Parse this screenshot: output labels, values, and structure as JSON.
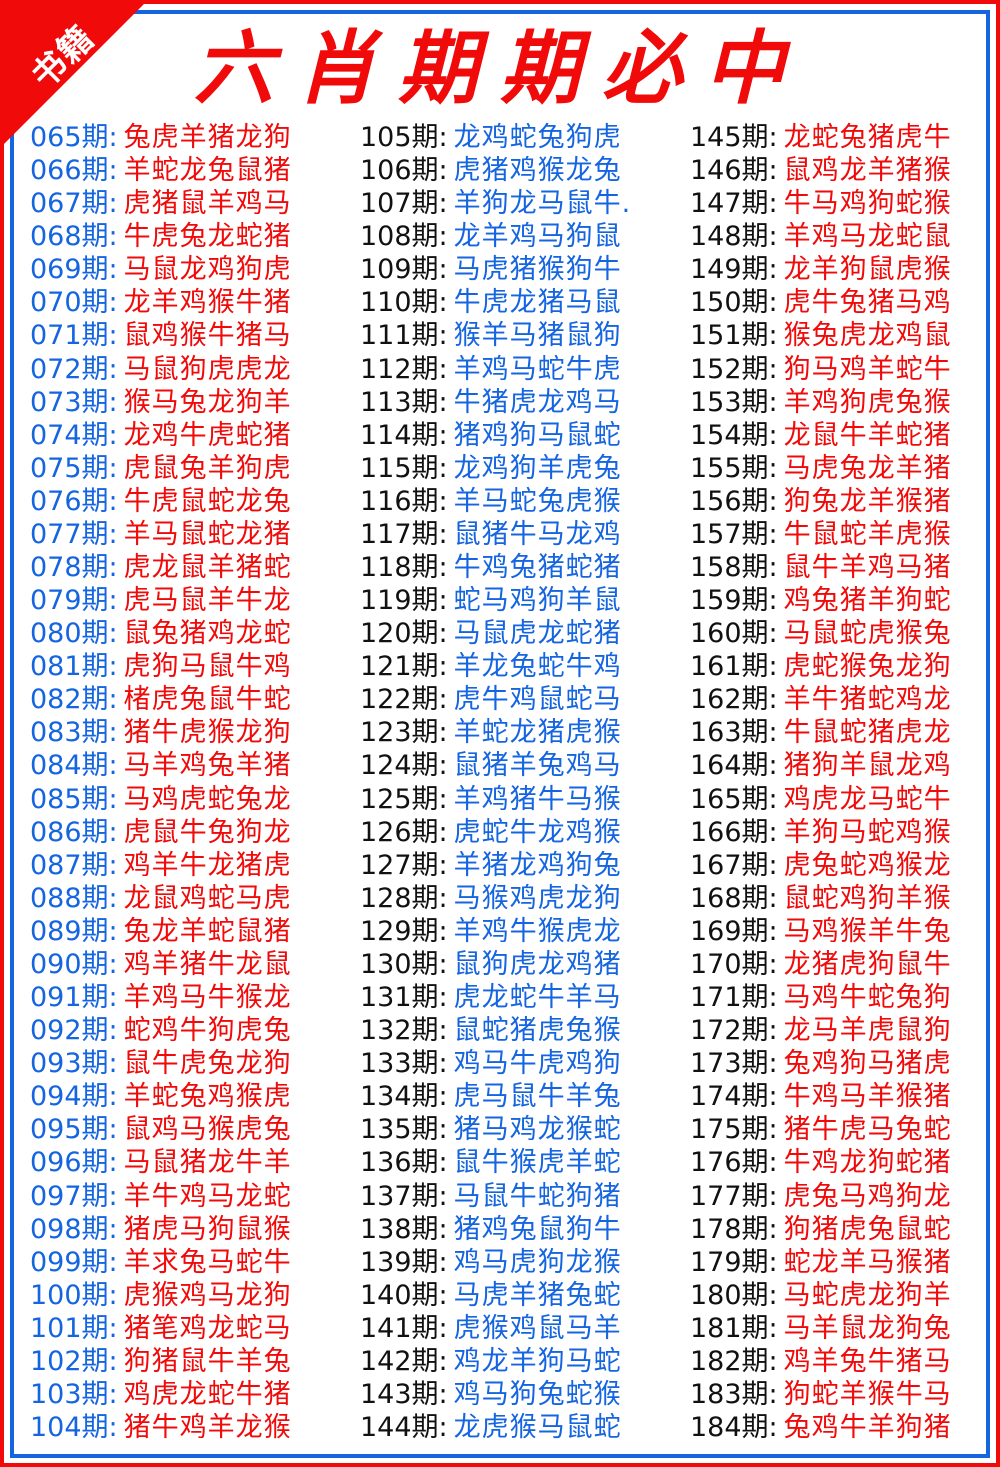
{
  "corner_badge": "书籍",
  "title": "六肖期期必中",
  "colors": {
    "red": "#f00a0a",
    "blue": "#1565e0",
    "black": "#111111"
  },
  "columns": [
    [
      [
        "065期:",
        "兔虎羊猪龙狗"
      ],
      [
        "066期:",
        "羊蛇龙兔鼠猪"
      ],
      [
        "067期:",
        "虎猪鼠羊鸡马"
      ],
      [
        "068期:",
        "牛虎兔龙蛇猪"
      ],
      [
        "069期:",
        "马鼠龙鸡狗虎"
      ],
      [
        "070期:",
        "龙羊鸡猴牛猪"
      ],
      [
        "071期:",
        "鼠鸡猴牛猪马"
      ],
      [
        "072期:",
        "马鼠狗虎虎龙"
      ],
      [
        "073期:",
        "猴马兔龙狗羊"
      ],
      [
        "074期:",
        "龙鸡牛虎蛇猪"
      ],
      [
        "075期:",
        "虎鼠兔羊狗虎"
      ],
      [
        "076期:",
        "牛虎鼠蛇龙兔"
      ],
      [
        "077期:",
        "羊马鼠蛇龙猪"
      ],
      [
        "078期:",
        "虎龙鼠羊猪蛇"
      ],
      [
        "079期:",
        "虎马鼠羊牛龙"
      ],
      [
        "080期:",
        "鼠兔猪鸡龙蛇"
      ],
      [
        "081期:",
        "虎狗马鼠牛鸡"
      ],
      [
        "082期:",
        "楮虎兔鼠牛蛇"
      ],
      [
        "083期:",
        "猪牛虎猴龙狗"
      ],
      [
        "084期:",
        "马羊鸡兔羊猪"
      ],
      [
        "085期:",
        "马鸡虎蛇兔龙"
      ],
      [
        "086期:",
        "虎鼠牛兔狗龙"
      ],
      [
        "087期:",
        "鸡羊牛龙猪虎"
      ],
      [
        "088期:",
        "龙鼠鸡蛇马虎"
      ],
      [
        "089期:",
        "兔龙羊蛇鼠猪"
      ],
      [
        "090期:",
        "鸡羊猪牛龙鼠"
      ],
      [
        "091期:",
        "羊鸡马牛猴龙"
      ],
      [
        "092期:",
        "蛇鸡牛狗虎兔"
      ],
      [
        "093期:",
        "鼠牛虎兔龙狗"
      ],
      [
        "094期:",
        "羊蛇兔鸡猴虎"
      ],
      [
        "095期:",
        "鼠鸡马猴虎兔"
      ],
      [
        "096期:",
        "马鼠猪龙牛羊"
      ],
      [
        "097期:",
        "羊牛鸡马龙蛇"
      ],
      [
        "098期:",
        "猪虎马狗鼠猴"
      ],
      [
        "099期:",
        "羊求兔马蛇牛"
      ],
      [
        "100期:",
        "虎猴鸡马龙狗"
      ],
      [
        "101期:",
        "猪笔鸡龙蛇马"
      ],
      [
        "102期:",
        "狗猪鼠牛羊兔"
      ],
      [
        "103期:",
        "鸡虎龙蛇牛猪"
      ],
      [
        "104期:",
        "猪牛鸡羊龙猴"
      ]
    ],
    [
      [
        "105期:",
        "龙鸡蛇兔狗虎"
      ],
      [
        "106期:",
        "虎猪鸡猴龙兔"
      ],
      [
        "107期:",
        "羊狗龙马鼠牛."
      ],
      [
        "108期:",
        "龙羊鸡马狗鼠"
      ],
      [
        "109期:",
        "马虎猪猴狗牛"
      ],
      [
        "110期:",
        "牛虎龙猪马鼠"
      ],
      [
        "111期:",
        "猴羊马猪鼠狗"
      ],
      [
        "112期:",
        "羊鸡马蛇牛虎"
      ],
      [
        "113期:",
        "牛猪虎龙鸡马"
      ],
      [
        "114期:",
        "猪鸡狗马鼠蛇"
      ],
      [
        "115期:",
        "龙鸡狗羊虎兔"
      ],
      [
        "116期:",
        "羊马蛇兔虎猴"
      ],
      [
        "117期:",
        "鼠猪牛马龙鸡"
      ],
      [
        "118期:",
        "牛鸡兔猪蛇猪"
      ],
      [
        "119期:",
        "蛇马鸡狗羊鼠"
      ],
      [
        "120期:",
        "马鼠虎龙蛇猪"
      ],
      [
        "121期:",
        "羊龙兔蛇牛鸡"
      ],
      [
        "122期:",
        "虎牛鸡鼠蛇马"
      ],
      [
        "123期:",
        "羊蛇龙猪虎猴"
      ],
      [
        "124期:",
        "鼠猪羊兔鸡马"
      ],
      [
        "125期:",
        "羊鸡猪牛马猴"
      ],
      [
        "126期:",
        "虎蛇牛龙鸡猴"
      ],
      [
        "127期:",
        "羊猪龙鸡狗兔"
      ],
      [
        "128期:",
        "马猴鸡虎龙狗"
      ],
      [
        "129期:",
        "羊鸡牛猴虎龙"
      ],
      [
        "130期:",
        "鼠狗虎龙鸡猪"
      ],
      [
        "131期:",
        "虎龙蛇牛羊马"
      ],
      [
        "132期:",
        "鼠蛇猪虎兔猴"
      ],
      [
        "133期:",
        "鸡马牛虎鸡狗"
      ],
      [
        "134期:",
        "虎马鼠牛羊兔"
      ],
      [
        "135期:",
        "猪马鸡龙猴蛇"
      ],
      [
        "136期:",
        "鼠牛猴虎羊蛇"
      ],
      [
        "137期:",
        "马鼠牛蛇狗猪"
      ],
      [
        "138期:",
        "猪鸡兔鼠狗牛"
      ],
      [
        "139期:",
        "鸡马虎狗龙猴"
      ],
      [
        "140期:",
        "马虎羊猪兔蛇"
      ],
      [
        "141期:",
        "虎猴鸡鼠马羊"
      ],
      [
        "142期:",
        "鸡龙羊狗马蛇"
      ],
      [
        "143期:",
        "鸡马狗兔蛇猴"
      ],
      [
        "144期:",
        "龙虎猴马鼠蛇"
      ]
    ],
    [
      [
        "145期:",
        "龙蛇兔猪虎牛"
      ],
      [
        "146期:",
        "鼠鸡龙羊猪猴"
      ],
      [
        "147期:",
        "牛马鸡狗蛇猴"
      ],
      [
        "148期:",
        "羊鸡马龙蛇鼠"
      ],
      [
        "149期:",
        "龙羊狗鼠虎猴"
      ],
      [
        "150期:",
        "虎牛兔猪马鸡"
      ],
      [
        "151期:",
        "猴兔虎龙鸡鼠"
      ],
      [
        "152期:",
        "狗马鸡羊蛇牛"
      ],
      [
        "153期:",
        "羊鸡狗虎兔猴"
      ],
      [
        "154期:",
        "龙鼠牛羊蛇猪"
      ],
      [
        "155期:",
        "马虎兔龙羊猪"
      ],
      [
        "156期:",
        "狗兔龙羊猴猪"
      ],
      [
        "157期:",
        "牛鼠蛇羊虎猴"
      ],
      [
        "158期:",
        "鼠牛羊鸡马猪"
      ],
      [
        "159期:",
        "鸡兔猪羊狗蛇"
      ],
      [
        "160期:",
        "马鼠蛇虎猴兔"
      ],
      [
        "161期:",
        "虎蛇猴兔龙狗"
      ],
      [
        "162期:",
        "羊牛猪蛇鸡龙"
      ],
      [
        "163期:",
        "牛鼠蛇猪虎龙"
      ],
      [
        "164期:",
        "猪狗羊鼠龙鸡"
      ],
      [
        "165期:",
        "鸡虎龙马蛇牛"
      ],
      [
        "166期:",
        "羊狗马蛇鸡猴"
      ],
      [
        "167期:",
        "虎兔蛇鸡猴龙"
      ],
      [
        "168期:",
        "鼠蛇鸡狗羊猴"
      ],
      [
        "169期:",
        "马鸡猴羊牛兔"
      ],
      [
        "170期:",
        "龙猪虎狗鼠牛"
      ],
      [
        "171期:",
        "马鸡牛蛇兔狗"
      ],
      [
        "172期:",
        "龙马羊虎鼠狗"
      ],
      [
        "173期:",
        "兔鸡狗马猪虎"
      ],
      [
        "174期:",
        "牛鸡马羊猴猪"
      ],
      [
        "175期:",
        "猪牛虎马兔蛇"
      ],
      [
        "176期:",
        "牛鸡龙狗蛇猪"
      ],
      [
        "177期:",
        "虎兔马鸡狗龙"
      ],
      [
        "178期:",
        "狗猪虎兔鼠蛇"
      ],
      [
        "179期:",
        "蛇龙羊马猴猪"
      ],
      [
        "180期:",
        "马蛇虎龙狗羊"
      ],
      [
        "181期:",
        "马羊鼠龙狗兔"
      ],
      [
        "182期:",
        "鸡羊兔牛猪马"
      ],
      [
        "183期:",
        "狗蛇羊猴牛马"
      ],
      [
        "184期:",
        "兔鸡牛羊狗猪"
      ]
    ]
  ]
}
